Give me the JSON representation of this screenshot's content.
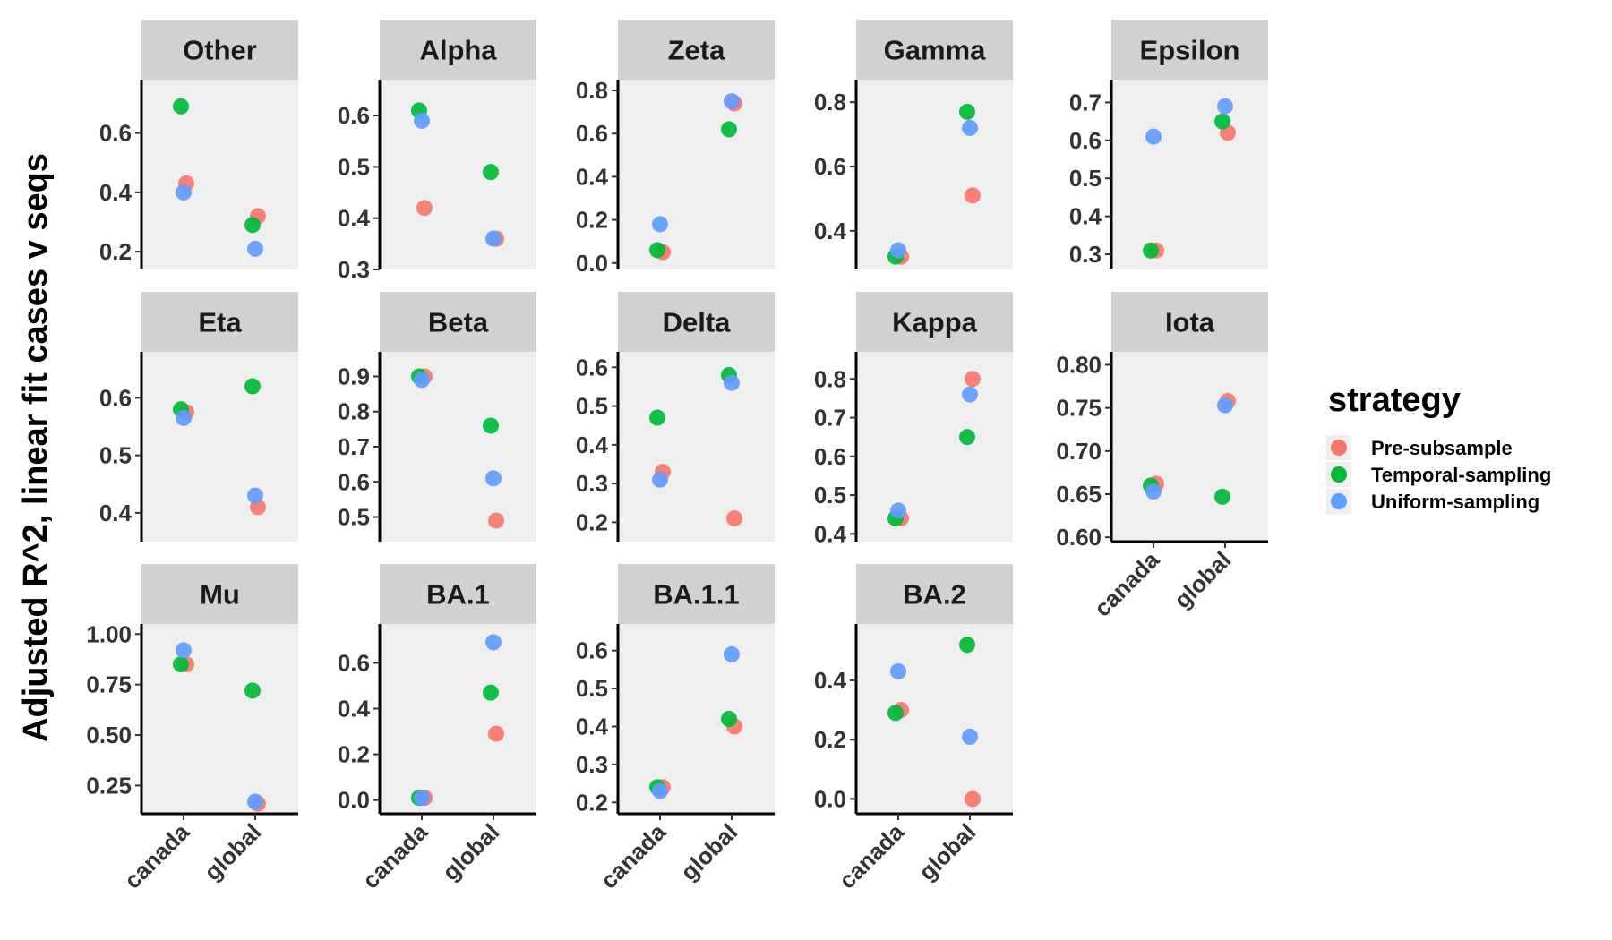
{
  "chart_data": {
    "type": "scatter",
    "ylabel": "Adjusted R^2, linear fit cases v seqs",
    "categories": [
      "canada",
      "global"
    ],
    "legend": {
      "title": "strategy",
      "placement": "right",
      "items": [
        {
          "name": "Pre-subsample",
          "color": "#F8766D"
        },
        {
          "name": "Temporal-sampling",
          "color": "#00BA38"
        },
        {
          "name": "Uniform-sampling",
          "color": "#619CFF"
        }
      ]
    },
    "facets": [
      {
        "title": "Other",
        "ylim": [
          0.14,
          0.78
        ],
        "yticks": [
          "0.2",
          "0.4",
          "0.6"
        ],
        "series": [
          {
            "name": "Pre-subsample",
            "values": [
              0.43,
              0.32
            ]
          },
          {
            "name": "Temporal-sampling",
            "values": [
              0.69,
              0.29
            ]
          },
          {
            "name": "Uniform-sampling",
            "values": [
              0.4,
              0.21
            ]
          }
        ]
      },
      {
        "title": "Alpha",
        "ylim": [
          0.3,
          0.67
        ],
        "yticks": [
          "0.3",
          "0.4",
          "0.5",
          "0.6"
        ],
        "series": [
          {
            "name": "Pre-subsample",
            "values": [
              0.42,
              0.36
            ]
          },
          {
            "name": "Temporal-sampling",
            "values": [
              0.61,
              0.49
            ]
          },
          {
            "name": "Uniform-sampling",
            "values": [
              0.59,
              0.36
            ]
          }
        ]
      },
      {
        "title": "Zeta",
        "ylim": [
          -0.03,
          0.85
        ],
        "yticks": [
          "0.0",
          "0.2",
          "0.4",
          "0.6",
          "0.8"
        ],
        "series": [
          {
            "name": "Pre-subsample",
            "values": [
              0.05,
              0.74
            ]
          },
          {
            "name": "Temporal-sampling",
            "values": [
              0.06,
              0.62
            ]
          },
          {
            "name": "Uniform-sampling",
            "values": [
              0.18,
              0.75
            ]
          }
        ]
      },
      {
        "title": "Gamma",
        "ylim": [
          0.28,
          0.87
        ],
        "yticks": [
          "0.4",
          "0.6",
          "0.8"
        ],
        "series": [
          {
            "name": "Pre-subsample",
            "values": [
              0.32,
              0.51
            ]
          },
          {
            "name": "Temporal-sampling",
            "values": [
              0.32,
              0.77
            ]
          },
          {
            "name": "Uniform-sampling",
            "values": [
              0.34,
              0.72
            ]
          }
        ]
      },
      {
        "title": "Epsilon",
        "ylim": [
          0.26,
          0.76
        ],
        "yticks": [
          "0.3",
          "0.4",
          "0.5",
          "0.6",
          "0.7"
        ],
        "series": [
          {
            "name": "Pre-subsample",
            "values": [
              0.31,
              0.62
            ]
          },
          {
            "name": "Temporal-sampling",
            "values": [
              0.31,
              0.65
            ]
          },
          {
            "name": "Uniform-sampling",
            "values": [
              0.61,
              0.69
            ]
          }
        ]
      },
      {
        "title": "Eta",
        "ylim": [
          0.35,
          0.68
        ],
        "yticks": [
          "0.4",
          "0.5",
          "0.6"
        ],
        "series": [
          {
            "name": "Pre-subsample",
            "values": [
              0.575,
              0.41
            ]
          },
          {
            "name": "Temporal-sampling",
            "values": [
              0.58,
              0.62
            ]
          },
          {
            "name": "Uniform-sampling",
            "values": [
              0.565,
              0.43
            ]
          }
        ]
      },
      {
        "title": "Beta",
        "ylim": [
          0.43,
          0.97
        ],
        "yticks": [
          "0.5",
          "0.6",
          "0.7",
          "0.8",
          "0.9"
        ],
        "series": [
          {
            "name": "Pre-subsample",
            "values": [
              0.9,
              0.49
            ]
          },
          {
            "name": "Temporal-sampling",
            "values": [
              0.9,
              0.76
            ]
          },
          {
            "name": "Uniform-sampling",
            "values": [
              0.89,
              0.61
            ]
          }
        ]
      },
      {
        "title": "Delta",
        "ylim": [
          0.15,
          0.64
        ],
        "yticks": [
          "0.2",
          "0.3",
          "0.4",
          "0.5",
          "0.6"
        ],
        "series": [
          {
            "name": "Pre-subsample",
            "values": [
              0.33,
              0.21
            ]
          },
          {
            "name": "Temporal-sampling",
            "values": [
              0.47,
              0.58
            ]
          },
          {
            "name": "Uniform-sampling",
            "values": [
              0.31,
              0.56
            ]
          }
        ]
      },
      {
        "title": "Kappa",
        "ylim": [
          0.38,
          0.87
        ],
        "yticks": [
          "0.4",
          "0.5",
          "0.6",
          "0.7",
          "0.8"
        ],
        "series": [
          {
            "name": "Pre-subsample",
            "values": [
              0.44,
              0.8
            ]
          },
          {
            "name": "Temporal-sampling",
            "values": [
              0.44,
              0.65
            ]
          },
          {
            "name": "Uniform-sampling",
            "values": [
              0.46,
              0.76
            ]
          }
        ]
      },
      {
        "title": "Iota",
        "ylim": [
          0.595,
          0.815
        ],
        "yticks": [
          "0.60",
          "0.65",
          "0.70",
          "0.75",
          "0.80"
        ],
        "series": [
          {
            "name": "Pre-subsample",
            "values": [
              0.662,
              0.758
            ]
          },
          {
            "name": "Temporal-sampling",
            "values": [
              0.66,
              0.647
            ]
          },
          {
            "name": "Uniform-sampling",
            "values": [
              0.653,
              0.753
            ]
          }
        ]
      },
      {
        "title": "Mu",
        "ylim": [
          0.11,
          1.05
        ],
        "yticks": [
          "0.25",
          "0.50",
          "0.75",
          "1.00"
        ],
        "series": [
          {
            "name": "Pre-subsample",
            "values": [
              0.85,
              0.16
            ]
          },
          {
            "name": "Temporal-sampling",
            "values": [
              0.85,
              0.72
            ]
          },
          {
            "name": "Uniform-sampling",
            "values": [
              0.92,
              0.17
            ]
          }
        ]
      },
      {
        "title": "BA.1",
        "ylim": [
          -0.06,
          0.77
        ],
        "yticks": [
          "0.0",
          "0.2",
          "0.4",
          "0.6"
        ],
        "series": [
          {
            "name": "Pre-subsample",
            "values": [
              0.01,
              0.29
            ]
          },
          {
            "name": "Temporal-sampling",
            "values": [
              0.01,
              0.47
            ]
          },
          {
            "name": "Uniform-sampling",
            "values": [
              0.01,
              0.69
            ]
          }
        ]
      },
      {
        "title": "BA.1.1",
        "ylim": [
          0.17,
          0.67
        ],
        "yticks": [
          "0.2",
          "0.3",
          "0.4",
          "0.5",
          "0.6"
        ],
        "series": [
          {
            "name": "Pre-subsample",
            "values": [
              0.24,
              0.4
            ]
          },
          {
            "name": "Temporal-sampling",
            "values": [
              0.24,
              0.42
            ]
          },
          {
            "name": "Uniform-sampling",
            "values": [
              0.23,
              0.59
            ]
          }
        ]
      },
      {
        "title": "BA.2",
        "ylim": [
          -0.05,
          0.59
        ],
        "yticks": [
          "0.0",
          "0.2",
          "0.4"
        ],
        "series": [
          {
            "name": "Pre-subsample",
            "values": [
              0.3,
              0.0
            ]
          },
          {
            "name": "Temporal-sampling",
            "values": [
              0.29,
              0.52
            ]
          },
          {
            "name": "Uniform-sampling",
            "values": [
              0.43,
              0.21
            ]
          }
        ]
      }
    ]
  }
}
